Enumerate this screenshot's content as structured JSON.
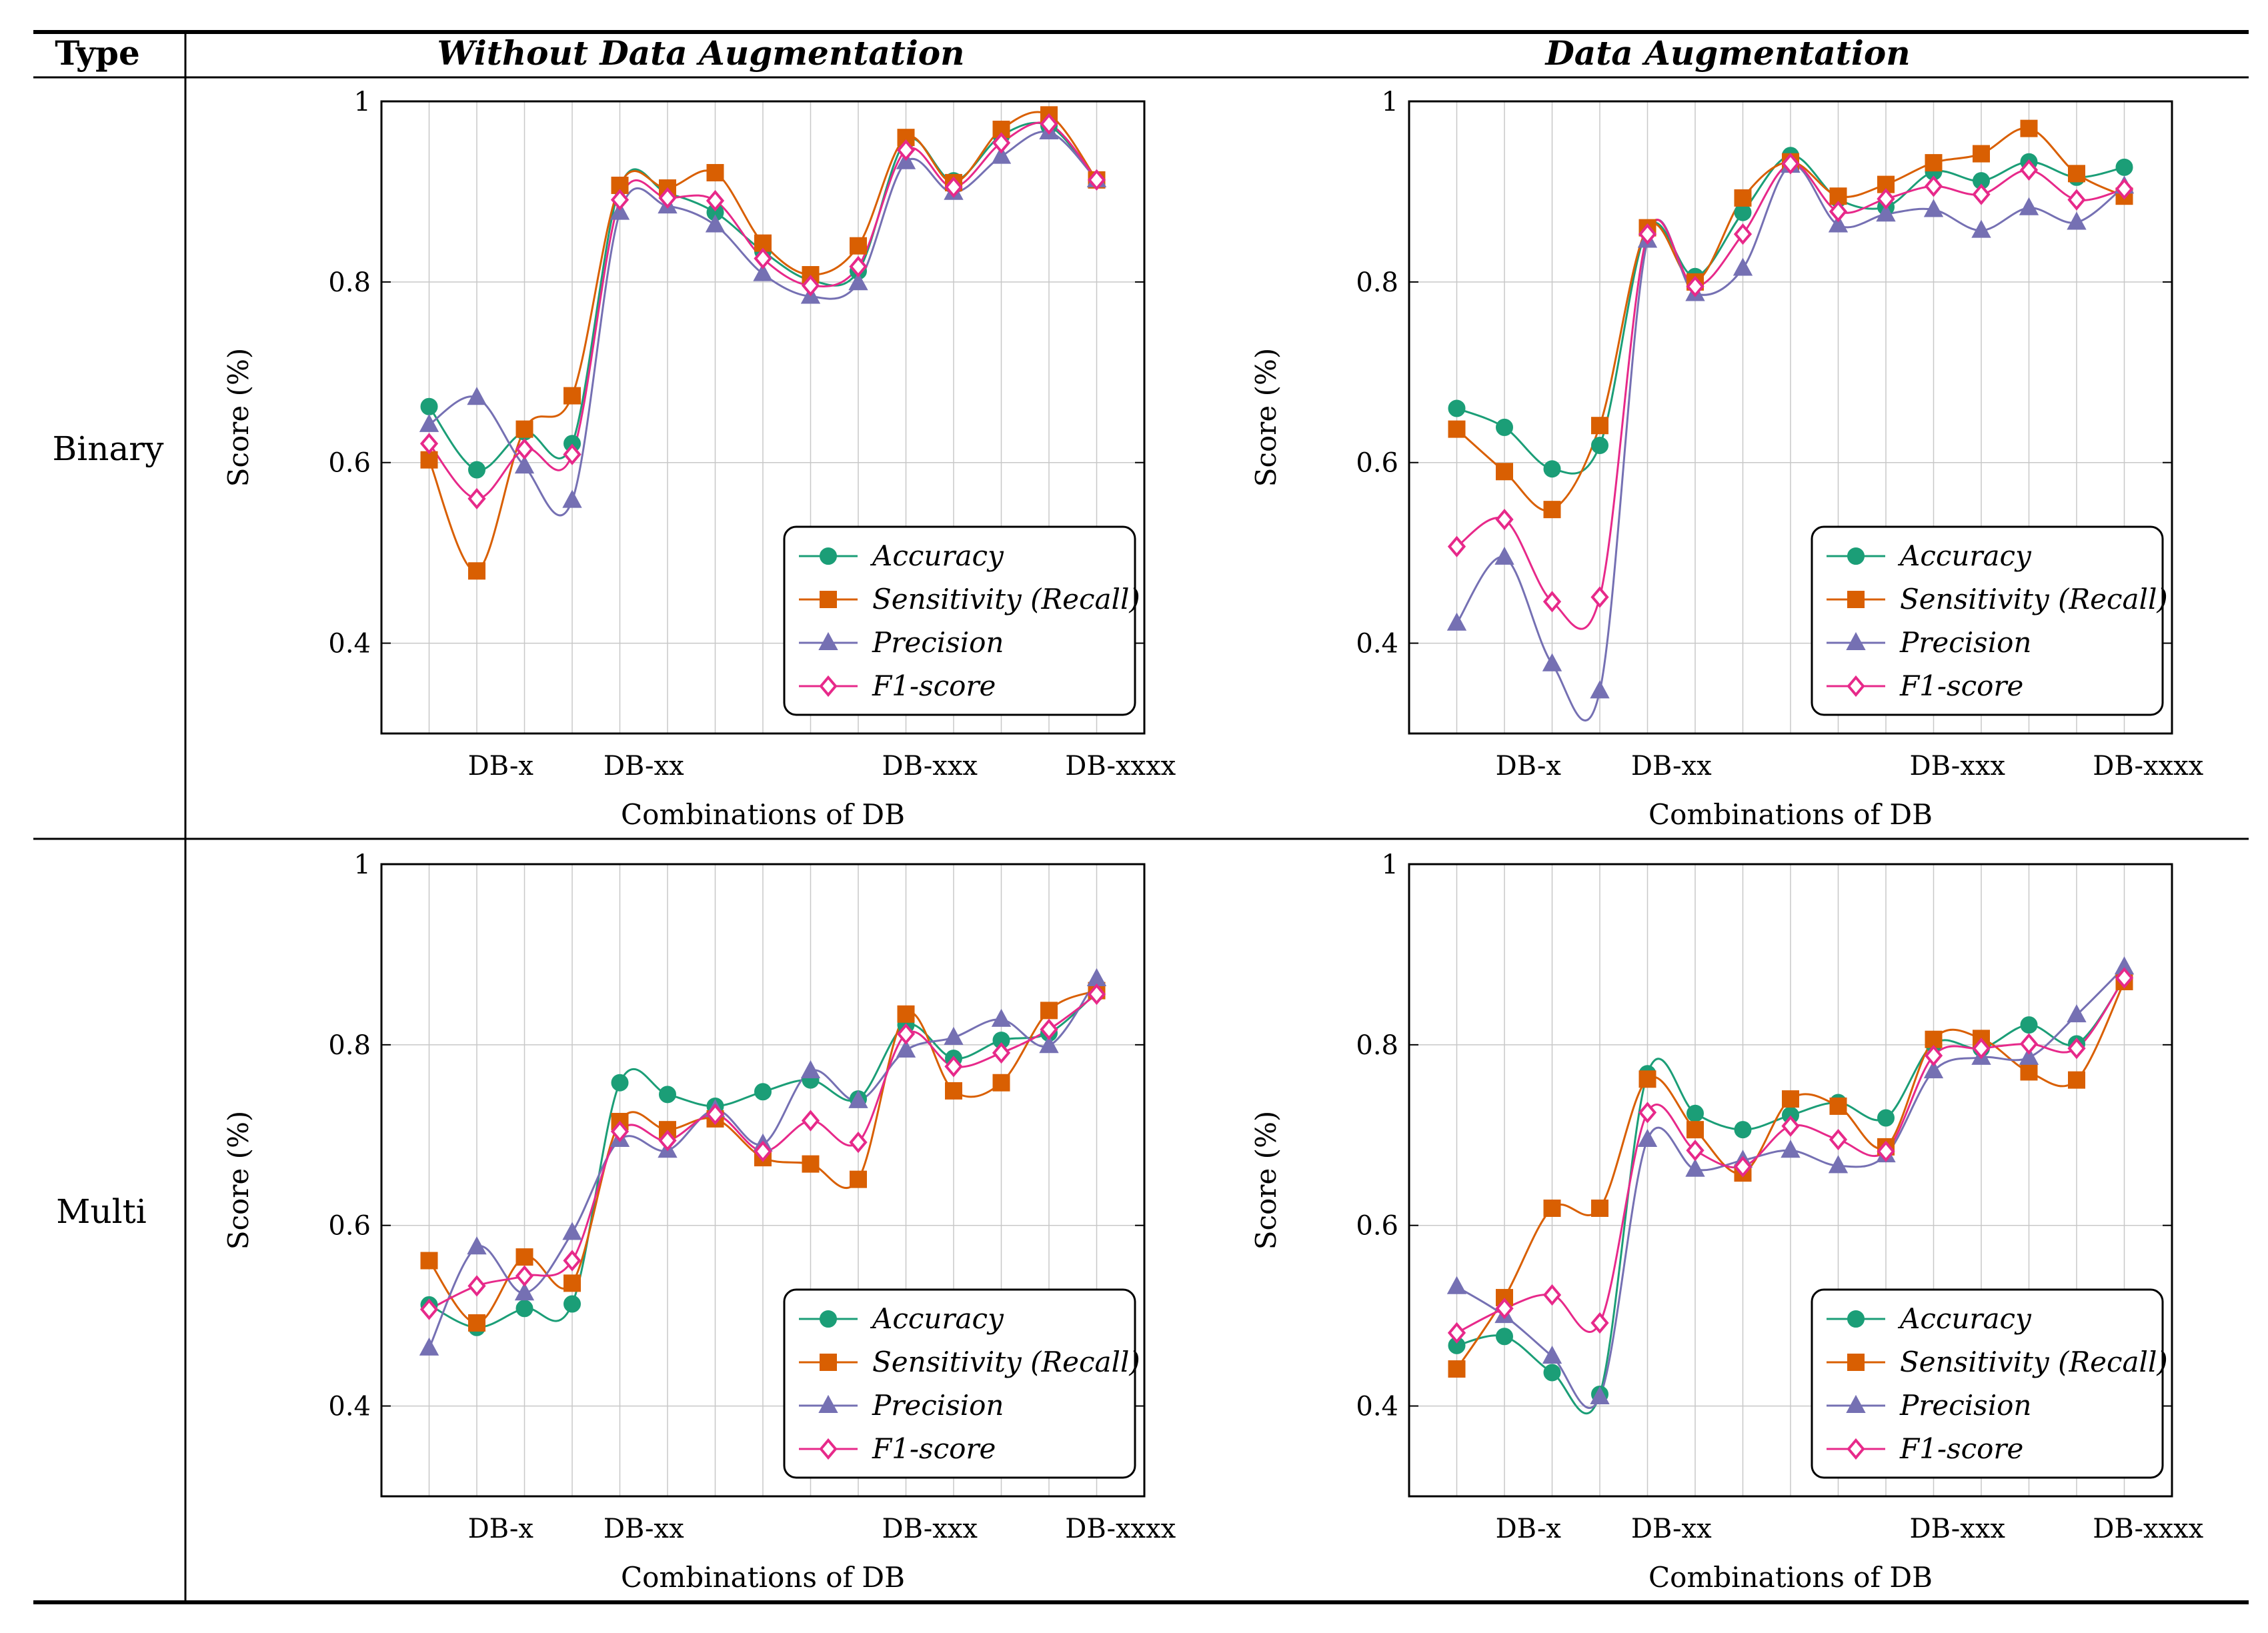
{
  "table": {
    "header_type": "Type",
    "header_col1": "Without Data Augmentation",
    "header_col2": "Data Augmentation",
    "row1_label": "Binary",
    "row2_label": "Multi"
  },
  "colors": {
    "Accuracy": "#1b9e77",
    "Sensitivity (Recall)": "#d95f02",
    "Precision": "#7570b3",
    "F1-score": "#e7298a"
  },
  "chart_data": [
    {
      "id": "binary-without",
      "type": "line",
      "title": "",
      "xlabel": "Combinations of DB",
      "ylabel": "Score (%)",
      "xlim": [
        0,
        16
      ],
      "ylim": [
        0.3,
        1
      ],
      "yticks": [
        0.4,
        0.6,
        0.8,
        1
      ],
      "yticklabels": [
        "0.4",
        "0.6",
        "0.8",
        "1"
      ],
      "xtick_positions": [
        2.5,
        5.5,
        11.5,
        15.5
      ],
      "xticklabels": [
        "DB-x",
        "DB-xx",
        "DB-xxx",
        "DB-xxxx"
      ],
      "legend": "bottom-right",
      "x": [
        1,
        2,
        3,
        4,
        5,
        6,
        7,
        8,
        9,
        10,
        11,
        12,
        13,
        14,
        15
      ],
      "series": [
        {
          "name": "Accuracy",
          "marker": "circle",
          "values": [
            0.662,
            0.592,
            0.634,
            0.621,
            0.905,
            0.898,
            0.877,
            0.834,
            0.802,
            0.812,
            0.956,
            0.912,
            0.962,
            0.973,
            0.913
          ]
        },
        {
          "name": "Sensitivity (Recall)",
          "marker": "square",
          "values": [
            0.603,
            0.48,
            0.637,
            0.674,
            0.907,
            0.904,
            0.921,
            0.843,
            0.808,
            0.84,
            0.96,
            0.91,
            0.969,
            0.985,
            0.913
          ]
        },
        {
          "name": "Precision",
          "marker": "triangle",
          "values": [
            0.642,
            0.672,
            0.596,
            0.558,
            0.877,
            0.884,
            0.863,
            0.809,
            0.784,
            0.799,
            0.933,
            0.899,
            0.939,
            0.966,
            0.913
          ]
        },
        {
          "name": "F1-score",
          "marker": "diamond",
          "values": [
            0.621,
            0.56,
            0.615,
            0.609,
            0.891,
            0.893,
            0.89,
            0.826,
            0.796,
            0.817,
            0.946,
            0.905,
            0.954,
            0.975,
            0.913
          ]
        }
      ]
    },
    {
      "id": "binary-augmented",
      "type": "line",
      "title": "",
      "xlabel": "Combinations of DB",
      "ylabel": "Score (%)",
      "xlim": [
        0,
        16
      ],
      "ylim": [
        0.3,
        1
      ],
      "yticks": [
        0.4,
        0.6,
        0.8,
        1
      ],
      "yticklabels": [
        "0.4",
        "0.6",
        "0.8",
        "1"
      ],
      "xtick_positions": [
        2.5,
        5.5,
        11.5,
        15.5
      ],
      "xticklabels": [
        "DB-x",
        "DB-xx",
        "DB-xxx",
        "DB-xxxx"
      ],
      "legend": "bottom-right",
      "x": [
        1,
        2,
        3,
        4,
        5,
        6,
        7,
        8,
        9,
        10,
        11,
        12,
        13,
        14,
        15
      ],
      "series": [
        {
          "name": "Accuracy",
          "marker": "circle",
          "values": [
            0.66,
            0.639,
            0.593,
            0.619,
            0.859,
            0.806,
            0.877,
            0.94,
            0.892,
            0.883,
            0.922,
            0.912,
            0.933,
            0.916,
            0.927
          ]
        },
        {
          "name": "Sensitivity (Recall)",
          "marker": "square",
          "values": [
            0.637,
            0.59,
            0.548,
            0.641,
            0.86,
            0.8,
            0.893,
            0.933,
            0.895,
            0.908,
            0.932,
            0.942,
            0.97,
            0.92,
            0.895
          ]
        },
        {
          "name": "Precision",
          "marker": "triangle",
          "values": [
            0.422,
            0.495,
            0.377,
            0.347,
            0.846,
            0.787,
            0.815,
            0.929,
            0.863,
            0.875,
            0.88,
            0.857,
            0.882,
            0.866,
            0.906
          ]
        },
        {
          "name": "F1-score",
          "marker": "diamond",
          "values": [
            0.507,
            0.537,
            0.446,
            0.451,
            0.853,
            0.795,
            0.853,
            0.931,
            0.878,
            0.892,
            0.906,
            0.897,
            0.924,
            0.891,
            0.903
          ]
        }
      ]
    },
    {
      "id": "multi-without",
      "type": "line",
      "title": "",
      "xlabel": "Combinations of DB",
      "ylabel": "Score (%)",
      "xlim": [
        0,
        16
      ],
      "ylim": [
        0.3,
        1
      ],
      "yticks": [
        0.4,
        0.6,
        0.8,
        1
      ],
      "yticklabels": [
        "0.4",
        "0.6",
        "0.8",
        "1"
      ],
      "xtick_positions": [
        2.5,
        5.5,
        11.5,
        15.5
      ],
      "xticklabels": [
        "DB-x",
        "DB-xx",
        "DB-xxx",
        "DB-xxxx"
      ],
      "legend": "bottom-right",
      "x": [
        1,
        2,
        3,
        4,
        5,
        6,
        7,
        8,
        9,
        10,
        11,
        12,
        13,
        14,
        15
      ],
      "series": [
        {
          "name": "Accuracy",
          "marker": "circle",
          "values": [
            0.512,
            0.487,
            0.508,
            0.513,
            0.758,
            0.745,
            0.732,
            0.748,
            0.761,
            0.74,
            0.822,
            0.785,
            0.805,
            0.813,
            0.858
          ]
        },
        {
          "name": "Sensitivity (Recall)",
          "marker": "square",
          "values": [
            0.561,
            0.492,
            0.565,
            0.536,
            0.715,
            0.706,
            0.718,
            0.675,
            0.668,
            0.651,
            0.834,
            0.749,
            0.758,
            0.838,
            0.86
          ]
        },
        {
          "name": "Precision",
          "marker": "triangle",
          "values": [
            0.464,
            0.576,
            0.525,
            0.592,
            0.695,
            0.683,
            0.728,
            0.69,
            0.771,
            0.738,
            0.794,
            0.808,
            0.828,
            0.799,
            0.873
          ]
        },
        {
          "name": "F1-score",
          "marker": "diamond",
          "values": [
            0.507,
            0.533,
            0.544,
            0.561,
            0.704,
            0.694,
            0.723,
            0.682,
            0.716,
            0.692,
            0.812,
            0.776,
            0.791,
            0.817,
            0.856
          ]
        }
      ]
    },
    {
      "id": "multi-augmented",
      "type": "line",
      "title": "",
      "xlabel": "Combinations of DB",
      "ylabel": "Score (%)",
      "xlim": [
        0,
        16
      ],
      "ylim": [
        0.3,
        1
      ],
      "yticks": [
        0.4,
        0.6,
        0.8,
        1
      ],
      "yticklabels": [
        "0.4",
        "0.6",
        "0.8",
        "1"
      ],
      "xtick_positions": [
        2.5,
        5.5,
        11.5,
        15.5
      ],
      "xticklabels": [
        "DB-x",
        "DB-xx",
        "DB-xxx",
        "DB-xxxx"
      ],
      "legend": "bottom-right",
      "x": [
        1,
        2,
        3,
        4,
        5,
        6,
        7,
        8,
        9,
        10,
        11,
        12,
        13,
        14,
        15
      ],
      "series": [
        {
          "name": "Accuracy",
          "marker": "circle",
          "values": [
            0.467,
            0.477,
            0.437,
            0.413,
            0.768,
            0.724,
            0.706,
            0.722,
            0.736,
            0.719,
            0.801,
            0.796,
            0.822,
            0.801,
            0.873
          ]
        },
        {
          "name": "Sensitivity (Recall)",
          "marker": "square",
          "values": [
            0.441,
            0.52,
            0.619,
            0.619,
            0.762,
            0.706,
            0.658,
            0.74,
            0.732,
            0.687,
            0.806,
            0.807,
            0.77,
            0.761,
            0.87
          ]
        },
        {
          "name": "Precision",
          "marker": "triangle",
          "values": [
            0.532,
            0.5,
            0.455,
            0.41,
            0.695,
            0.662,
            0.672,
            0.683,
            0.666,
            0.678,
            0.771,
            0.786,
            0.786,
            0.833,
            0.886
          ]
        },
        {
          "name": "F1-score",
          "marker": "diamond",
          "values": [
            0.481,
            0.508,
            0.523,
            0.492,
            0.725,
            0.683,
            0.665,
            0.71,
            0.695,
            0.682,
            0.788,
            0.796,
            0.801,
            0.796,
            0.874
          ]
        }
      ]
    }
  ]
}
